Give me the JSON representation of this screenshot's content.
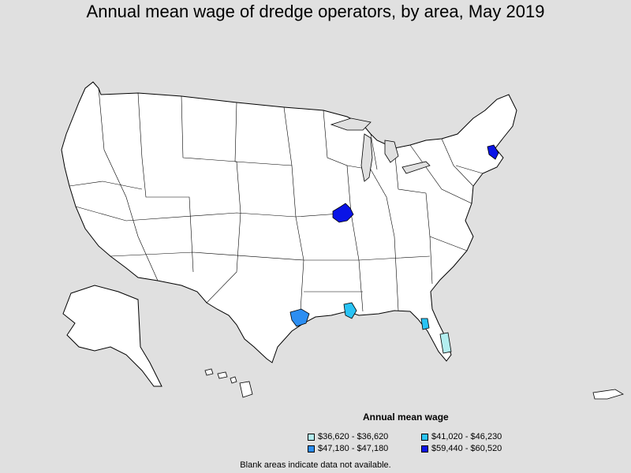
{
  "title": "Annual mean wage of dredge operators, by area, May 2019",
  "legend": {
    "title": "Annual mean wage",
    "items": [
      {
        "label": "$36,620 - $36,620",
        "color": "#b3eef0"
      },
      {
        "label": "$41,020 - $46,230",
        "color": "#29c3f5"
      },
      {
        "label": "$47,180 - $47,180",
        "color": "#2c8ef2"
      },
      {
        "label": "$59,440 - $60,520",
        "color": "#0a14e6"
      }
    ]
  },
  "footnote": "Blank areas indicate data not available.",
  "colors": {
    "background": "#e0e0e0",
    "land": "#ffffff",
    "border": "#000000"
  }
}
